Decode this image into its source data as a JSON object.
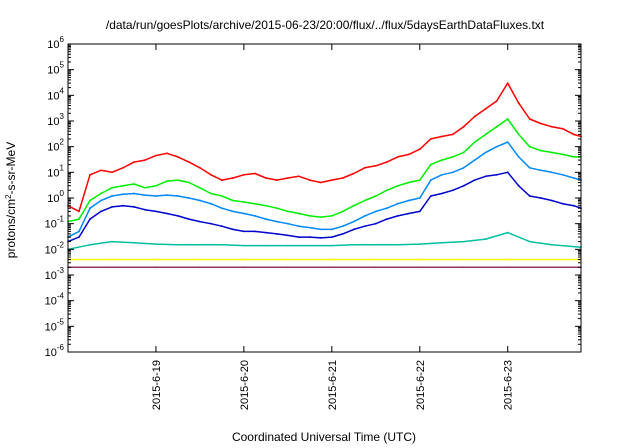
{
  "chart_data": {
    "type": "line",
    "title": "/data/run/goesPlots/archive/2015-06-23/20:00/flux/../flux/5daysEarthDataFluxes.txt",
    "xlabel": "Coordinated Universal Time (UTC)",
    "ylabel": "protons/cm²-s-sr-MeV",
    "ylabel_parts": {
      "pre": "protons/cm",
      "sup": "2",
      "post": "-s-sr-MeV"
    },
    "y_scale": "log",
    "ylim": [
      1e-06,
      1000000.0
    ],
    "y_ticks": [
      {
        "value": 1e-06,
        "base": "10",
        "exp": "-6"
      },
      {
        "value": 1e-05,
        "base": "10",
        "exp": "-5"
      },
      {
        "value": 0.0001,
        "base": "10",
        "exp": "-4"
      },
      {
        "value": 0.001,
        "base": "10",
        "exp": "-3"
      },
      {
        "value": 0.01,
        "base": "10",
        "exp": "-2"
      },
      {
        "value": 0.1,
        "base": "10",
        "exp": "-1"
      },
      {
        "value": 1,
        "base": "10",
        "exp": "0"
      },
      {
        "value": 10.0,
        "base": "10",
        "exp": "1"
      },
      {
        "value": 100.0,
        "base": "10",
        "exp": "2"
      },
      {
        "value": 1000.0,
        "base": "10",
        "exp": "3"
      },
      {
        "value": 10000.0,
        "base": "10",
        "exp": "4"
      },
      {
        "value": 100000.0,
        "base": "10",
        "exp": "5"
      },
      {
        "value": 1000000.0,
        "base": "10",
        "exp": "6"
      }
    ],
    "xlim": [
      "2015-06-18T00:00",
      "2015-06-23T20:00"
    ],
    "x_ticks": [
      {
        "value": "2015-06-19T00:00",
        "label": "2015-6-19"
      },
      {
        "value": "2015-06-20T00:00",
        "label": "2015-6-20"
      },
      {
        "value": "2015-06-21T00:00",
        "label": "2015-6-21"
      },
      {
        "value": "2015-06-22T00:00",
        "label": "2015-6-22"
      },
      {
        "value": "2015-06-23T00:00",
        "label": "2015-6-23"
      }
    ],
    "grid": false,
    "legend": "none",
    "series": [
      {
        "color": "#ff0000",
        "x": [
          "2015-06-18T00:00",
          "2015-06-18T03:00",
          "2015-06-18T06:00",
          "2015-06-18T09:00",
          "2015-06-18T12:00",
          "2015-06-18T15:00",
          "2015-06-18T18:00",
          "2015-06-18T21:00",
          "2015-06-19T00:00",
          "2015-06-19T03:00",
          "2015-06-19T06:00",
          "2015-06-19T09:00",
          "2015-06-19T12:00",
          "2015-06-19T15:00",
          "2015-06-19T18:00",
          "2015-06-19T21:00",
          "2015-06-20T00:00",
          "2015-06-20T03:00",
          "2015-06-20T06:00",
          "2015-06-20T09:00",
          "2015-06-20T12:00",
          "2015-06-20T15:00",
          "2015-06-20T18:00",
          "2015-06-20T21:00",
          "2015-06-21T00:00",
          "2015-06-21T03:00",
          "2015-06-21T06:00",
          "2015-06-21T09:00",
          "2015-06-21T12:00",
          "2015-06-21T15:00",
          "2015-06-21T18:00",
          "2015-06-21T21:00",
          "2015-06-22T00:00",
          "2015-06-22T03:00",
          "2015-06-22T06:00",
          "2015-06-22T09:00",
          "2015-06-22T12:00",
          "2015-06-22T15:00",
          "2015-06-22T18:00",
          "2015-06-22T21:00",
          "2015-06-23T00:00",
          "2015-06-23T03:00",
          "2015-06-23T06:00",
          "2015-06-23T09:00",
          "2015-06-23T12:00",
          "2015-06-23T15:00",
          "2015-06-23T18:00",
          "2015-06-23T20:00"
        ],
        "values": [
          0.5,
          0.3,
          8,
          12,
          10,
          15,
          25,
          30,
          45,
          55,
          40,
          25,
          15,
          8,
          5,
          6,
          8,
          9,
          6,
          5,
          6,
          7,
          5,
          4,
          5,
          6,
          9,
          15,
          18,
          25,
          40,
          50,
          80,
          200,
          250,
          300,
          600,
          1500,
          3000,
          6000,
          30000,
          5000,
          1200,
          800,
          600,
          500,
          300,
          250
        ]
      },
      {
        "color": "#00ee00",
        "x": [
          "2015-06-18T00:00",
          "2015-06-18T03:00",
          "2015-06-18T06:00",
          "2015-06-18T09:00",
          "2015-06-18T12:00",
          "2015-06-18T15:00",
          "2015-06-18T18:00",
          "2015-06-18T21:00",
          "2015-06-19T00:00",
          "2015-06-19T03:00",
          "2015-06-19T06:00",
          "2015-06-19T09:00",
          "2015-06-19T12:00",
          "2015-06-19T15:00",
          "2015-06-19T18:00",
          "2015-06-19T21:00",
          "2015-06-20T00:00",
          "2015-06-20T03:00",
          "2015-06-20T06:00",
          "2015-06-20T09:00",
          "2015-06-20T12:00",
          "2015-06-20T15:00",
          "2015-06-20T18:00",
          "2015-06-20T21:00",
          "2015-06-21T00:00",
          "2015-06-21T03:00",
          "2015-06-21T06:00",
          "2015-06-21T09:00",
          "2015-06-21T12:00",
          "2015-06-21T15:00",
          "2015-06-21T18:00",
          "2015-06-21T21:00",
          "2015-06-22T00:00",
          "2015-06-22T03:00",
          "2015-06-22T06:00",
          "2015-06-22T09:00",
          "2015-06-22T12:00",
          "2015-06-22T15:00",
          "2015-06-22T18:00",
          "2015-06-22T21:00",
          "2015-06-23T00:00",
          "2015-06-23T03:00",
          "2015-06-23T06:00",
          "2015-06-23T09:00",
          "2015-06-23T12:00",
          "2015-06-23T15:00",
          "2015-06-23T18:00",
          "2015-06-23T20:00"
        ],
        "values": [
          0.12,
          0.15,
          0.8,
          1.5,
          2.5,
          3,
          3.5,
          2.5,
          3,
          4.5,
          5,
          4,
          2.5,
          1.5,
          1.2,
          0.8,
          0.7,
          0.6,
          0.5,
          0.4,
          0.3,
          0.25,
          0.2,
          0.18,
          0.2,
          0.3,
          0.5,
          0.8,
          1.2,
          2,
          3,
          4,
          5,
          20,
          30,
          40,
          60,
          150,
          300,
          600,
          1200,
          300,
          100,
          70,
          60,
          50,
          40,
          40
        ]
      },
      {
        "color": "#0088ff",
        "x": [
          "2015-06-18T00:00",
          "2015-06-18T03:00",
          "2015-06-18T06:00",
          "2015-06-18T09:00",
          "2015-06-18T12:00",
          "2015-06-18T15:00",
          "2015-06-18T18:00",
          "2015-06-18T21:00",
          "2015-06-19T00:00",
          "2015-06-19T03:00",
          "2015-06-19T06:00",
          "2015-06-19T09:00",
          "2015-06-19T12:00",
          "2015-06-19T15:00",
          "2015-06-19T18:00",
          "2015-06-19T21:00",
          "2015-06-20T00:00",
          "2015-06-20T03:00",
          "2015-06-20T06:00",
          "2015-06-20T09:00",
          "2015-06-20T12:00",
          "2015-06-20T15:00",
          "2015-06-20T18:00",
          "2015-06-20T21:00",
          "2015-06-21T00:00",
          "2015-06-21T03:00",
          "2015-06-21T06:00",
          "2015-06-21T09:00",
          "2015-06-21T12:00",
          "2015-06-21T15:00",
          "2015-06-21T18:00",
          "2015-06-21T21:00",
          "2015-06-22T00:00",
          "2015-06-22T03:00",
          "2015-06-22T06:00",
          "2015-06-22T09:00",
          "2015-06-22T12:00",
          "2015-06-22T15:00",
          "2015-06-22T18:00",
          "2015-06-22T21:00",
          "2015-06-23T00:00",
          "2015-06-23T03:00",
          "2015-06-23T06:00",
          "2015-06-23T09:00",
          "2015-06-23T12:00",
          "2015-06-23T15:00",
          "2015-06-23T18:00",
          "2015-06-23T20:00"
        ],
        "values": [
          0.03,
          0.05,
          0.4,
          0.8,
          1.2,
          1.4,
          1.5,
          1.3,
          1.2,
          1.3,
          1.2,
          1.0,
          0.8,
          0.6,
          0.4,
          0.3,
          0.25,
          0.2,
          0.15,
          0.12,
          0.1,
          0.08,
          0.07,
          0.06,
          0.06,
          0.08,
          0.12,
          0.2,
          0.3,
          0.4,
          0.6,
          0.8,
          1.0,
          5,
          8,
          10,
          15,
          30,
          60,
          100,
          150,
          40,
          15,
          12,
          10,
          8,
          6,
          5
        ]
      },
      {
        "color": "#0000cc",
        "x": [
          "2015-06-18T00:00",
          "2015-06-18T03:00",
          "2015-06-18T06:00",
          "2015-06-18T09:00",
          "2015-06-18T12:00",
          "2015-06-18T15:00",
          "2015-06-18T18:00",
          "2015-06-18T21:00",
          "2015-06-19T00:00",
          "2015-06-19T03:00",
          "2015-06-19T06:00",
          "2015-06-19T09:00",
          "2015-06-19T12:00",
          "2015-06-19T15:00",
          "2015-06-19T18:00",
          "2015-06-19T21:00",
          "2015-06-20T00:00",
          "2015-06-20T03:00",
          "2015-06-20T06:00",
          "2015-06-20T09:00",
          "2015-06-20T12:00",
          "2015-06-20T15:00",
          "2015-06-20T18:00",
          "2015-06-20T21:00",
          "2015-06-21T00:00",
          "2015-06-21T03:00",
          "2015-06-21T06:00",
          "2015-06-21T09:00",
          "2015-06-21T12:00",
          "2015-06-21T15:00",
          "2015-06-21T18:00",
          "2015-06-21T21:00",
          "2015-06-22T00:00",
          "2015-06-22T03:00",
          "2015-06-22T06:00",
          "2015-06-22T09:00",
          "2015-06-22T12:00",
          "2015-06-22T15:00",
          "2015-06-22T18:00",
          "2015-06-22T21:00",
          "2015-06-23T00:00",
          "2015-06-23T03:00",
          "2015-06-23T06:00",
          "2015-06-23T09:00",
          "2015-06-23T12:00",
          "2015-06-23T15:00",
          "2015-06-23T18:00",
          "2015-06-23T20:00"
        ],
        "values": [
          0.02,
          0.03,
          0.15,
          0.3,
          0.45,
          0.5,
          0.45,
          0.35,
          0.3,
          0.25,
          0.2,
          0.15,
          0.12,
          0.1,
          0.08,
          0.06,
          0.05,
          0.05,
          0.045,
          0.04,
          0.035,
          0.03,
          0.03,
          0.028,
          0.03,
          0.04,
          0.06,
          0.08,
          0.1,
          0.15,
          0.2,
          0.25,
          0.3,
          1.2,
          1.5,
          2,
          3,
          5,
          7,
          8,
          10,
          3,
          1.2,
          1,
          0.8,
          0.6,
          0.5,
          0.4
        ]
      },
      {
        "color": "#00bfa0",
        "x": [
          "2015-06-18T00:00",
          "2015-06-18T06:00",
          "2015-06-18T12:00",
          "2015-06-18T18:00",
          "2015-06-19T00:00",
          "2015-06-19T06:00",
          "2015-06-19T12:00",
          "2015-06-19T18:00",
          "2015-06-20T00:00",
          "2015-06-20T06:00",
          "2015-06-20T12:00",
          "2015-06-20T18:00",
          "2015-06-21T00:00",
          "2015-06-21T06:00",
          "2015-06-21T12:00",
          "2015-06-21T18:00",
          "2015-06-22T00:00",
          "2015-06-22T06:00",
          "2015-06-22T12:00",
          "2015-06-22T18:00",
          "2015-06-23T00:00",
          "2015-06-23T06:00",
          "2015-06-23T12:00",
          "2015-06-23T20:00"
        ],
        "values": [
          0.01,
          0.015,
          0.02,
          0.018,
          0.016,
          0.015,
          0.015,
          0.015,
          0.014,
          0.014,
          0.014,
          0.014,
          0.014,
          0.015,
          0.015,
          0.015,
          0.016,
          0.018,
          0.02,
          0.025,
          0.045,
          0.02,
          0.015,
          0.012
        ]
      },
      {
        "color": "#ffff00",
        "x": [
          "2015-06-18T00:00",
          "2015-06-18T12:00",
          "2015-06-19T00:00",
          "2015-06-19T12:00",
          "2015-06-20T00:00",
          "2015-06-20T12:00",
          "2015-06-21T00:00",
          "2015-06-21T12:00",
          "2015-06-22T00:00",
          "2015-06-22T12:00",
          "2015-06-23T00:00",
          "2015-06-23T20:00"
        ],
        "values": [
          0.004,
          0.004,
          0.004,
          0.004,
          0.004,
          0.004,
          0.004,
          0.004,
          0.004,
          0.004,
          0.004,
          0.004
        ]
      },
      {
        "color": "#993366",
        "x": [
          "2015-06-18T00:00",
          "2015-06-18T12:00",
          "2015-06-19T00:00",
          "2015-06-19T12:00",
          "2015-06-20T00:00",
          "2015-06-20T12:00",
          "2015-06-21T00:00",
          "2015-06-21T12:00",
          "2015-06-22T00:00",
          "2015-06-22T12:00",
          "2015-06-23T00:00",
          "2015-06-23T20:00"
        ],
        "values": [
          0.002,
          0.002,
          0.002,
          0.002,
          0.002,
          0.002,
          0.002,
          0.002,
          0.002,
          0.002,
          0.002,
          0.002
        ]
      }
    ]
  }
}
